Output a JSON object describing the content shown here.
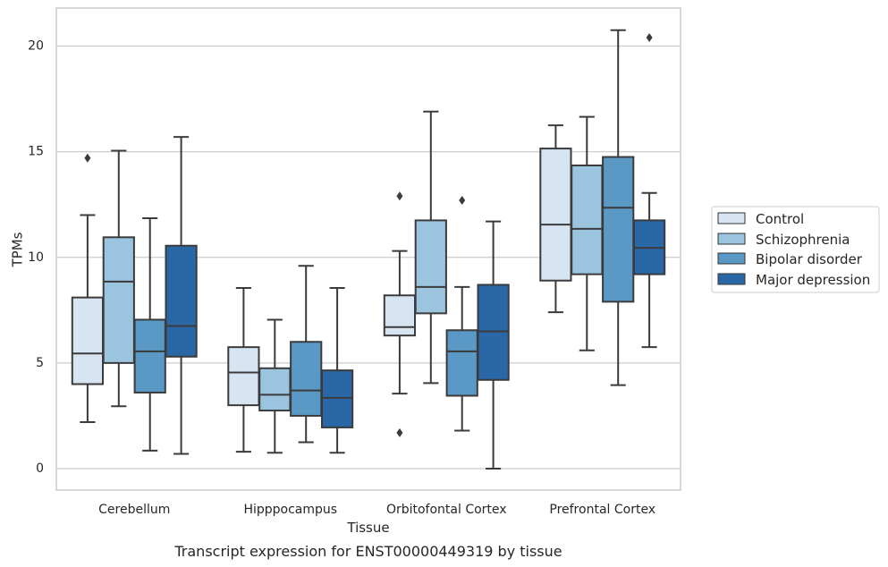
{
  "chart_data": {
    "type": "box",
    "caption": "Transcript expression for ENST00000449319 by tissue",
    "xlabel": "Tissue",
    "ylabel": "TPMs",
    "ylim": [
      -1,
      21.8
    ],
    "yticks": [
      0,
      5,
      10,
      15,
      20
    ],
    "grid": "horizontal",
    "legend_position": "right",
    "categories": [
      "Cerebellum",
      "Hipppocampus",
      "Orbitofontal Cortex",
      "Prefrontal Cortex"
    ],
    "series": [
      {
        "name": "Control",
        "color": "#d7e5f3",
        "boxes": [
          {
            "whislo": 2.2,
            "q1": 4.0,
            "med": 5.45,
            "q3": 8.1,
            "whishi": 12.0,
            "fliers": [
              14.7
            ]
          },
          {
            "whislo": 0.8,
            "q1": 3.0,
            "med": 4.55,
            "q3": 5.75,
            "whishi": 8.55,
            "fliers": []
          },
          {
            "whislo": 3.55,
            "q1": 6.3,
            "med": 6.7,
            "q3": 8.2,
            "whishi": 10.3,
            "fliers": [
              12.9,
              1.7
            ]
          },
          {
            "whislo": 7.4,
            "q1": 8.9,
            "med": 11.55,
            "q3": 15.15,
            "whishi": 16.25,
            "fliers": []
          }
        ]
      },
      {
        "name": "Schizophrenia",
        "color": "#9bc4de",
        "boxes": [
          {
            "whislo": 2.95,
            "q1": 5.0,
            "med": 8.85,
            "q3": 10.95,
            "whishi": 15.05,
            "fliers": []
          },
          {
            "whislo": 0.75,
            "q1": 2.75,
            "med": 3.5,
            "q3": 4.75,
            "whishi": 7.05,
            "fliers": []
          },
          {
            "whislo": 4.05,
            "q1": 7.35,
            "med": 8.6,
            "q3": 11.75,
            "whishi": 16.9,
            "fliers": []
          },
          {
            "whislo": 5.6,
            "q1": 9.2,
            "med": 11.35,
            "q3": 14.35,
            "whishi": 16.65,
            "fliers": []
          }
        ]
      },
      {
        "name": "Bipolar disorder",
        "color": "#5a99c6",
        "boxes": [
          {
            "whislo": 0.85,
            "q1": 3.6,
            "med": 5.55,
            "q3": 7.05,
            "whishi": 11.85,
            "fliers": []
          },
          {
            "whislo": 1.25,
            "q1": 2.5,
            "med": 3.7,
            "q3": 6.0,
            "whishi": 9.6,
            "fliers": []
          },
          {
            "whislo": 1.8,
            "q1": 3.45,
            "med": 5.55,
            "q3": 6.55,
            "whishi": 8.6,
            "fliers": [
              12.7
            ]
          },
          {
            "whislo": 3.95,
            "q1": 7.9,
            "med": 12.35,
            "q3": 14.75,
            "whishi": 20.75,
            "fliers": []
          }
        ]
      },
      {
        "name": "Major depression",
        "color": "#2a67a6",
        "boxes": [
          {
            "whislo": 0.7,
            "q1": 5.3,
            "med": 6.75,
            "q3": 10.55,
            "whishi": 15.7,
            "fliers": []
          },
          {
            "whislo": 0.75,
            "q1": 1.95,
            "med": 3.35,
            "q3": 4.65,
            "whishi": 8.55,
            "fliers": []
          },
          {
            "whislo": 0.0,
            "q1": 4.2,
            "med": 6.5,
            "q3": 8.7,
            "whishi": 11.7,
            "fliers": []
          },
          {
            "whislo": 5.75,
            "q1": 9.2,
            "med": 10.45,
            "q3": 11.75,
            "whishi": 13.05,
            "fliers": [
              20.4
            ]
          }
        ]
      }
    ]
  }
}
